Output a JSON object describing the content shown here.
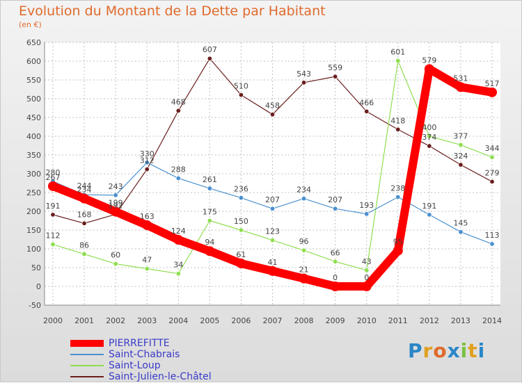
{
  "chart_data": {
    "type": "line",
    "title": "Evolution du Montant de la Dette par Habitant",
    "ylabel": "(en €)",
    "x": [
      "2000",
      "2001",
      "2002",
      "2003",
      "2004",
      "2005",
      "2006",
      "2007",
      "2008",
      "2009",
      "2010",
      "2011",
      "2012",
      "2013",
      "2014"
    ],
    "ylim": [
      -50,
      650
    ],
    "yticks": [
      -50,
      0,
      50,
      100,
      150,
      200,
      250,
      300,
      350,
      400,
      450,
      500,
      550,
      600,
      650
    ],
    "grid": "dashed-vertical-and-horizontal",
    "legend_position": "bottom-left",
    "series": [
      {
        "name": "PIERREFITTE",
        "color": "#ff0000",
        "values": [
          267,
          234,
          199,
          163,
          124,
          94,
          61,
          41,
          21,
          0,
          0,
          95,
          579,
          531,
          517
        ]
      },
      {
        "name": "Saint-Chabrais",
        "color": "#4a90d0",
        "values": [
          280,
          244,
          243,
          330,
          288,
          261,
          236,
          207,
          234,
          207,
          193,
          238,
          191,
          145,
          113
        ]
      },
      {
        "name": "Saint-Loup",
        "color": "#8fde4f",
        "values": [
          112,
          86,
          60,
          47,
          34,
          175,
          150,
          123,
          96,
          66,
          43,
          601,
          400,
          377,
          344
        ]
      },
      {
        "name": "Saint-Julien-le-Châtel",
        "color": "#6a1e1e",
        "values": [
          191,
          168,
          192,
          312,
          468,
          607,
          510,
          458,
          543,
          559,
          466,
          418,
          374,
          324,
          279
        ]
      }
    ]
  },
  "logo": {
    "text": "Proxiti"
  }
}
